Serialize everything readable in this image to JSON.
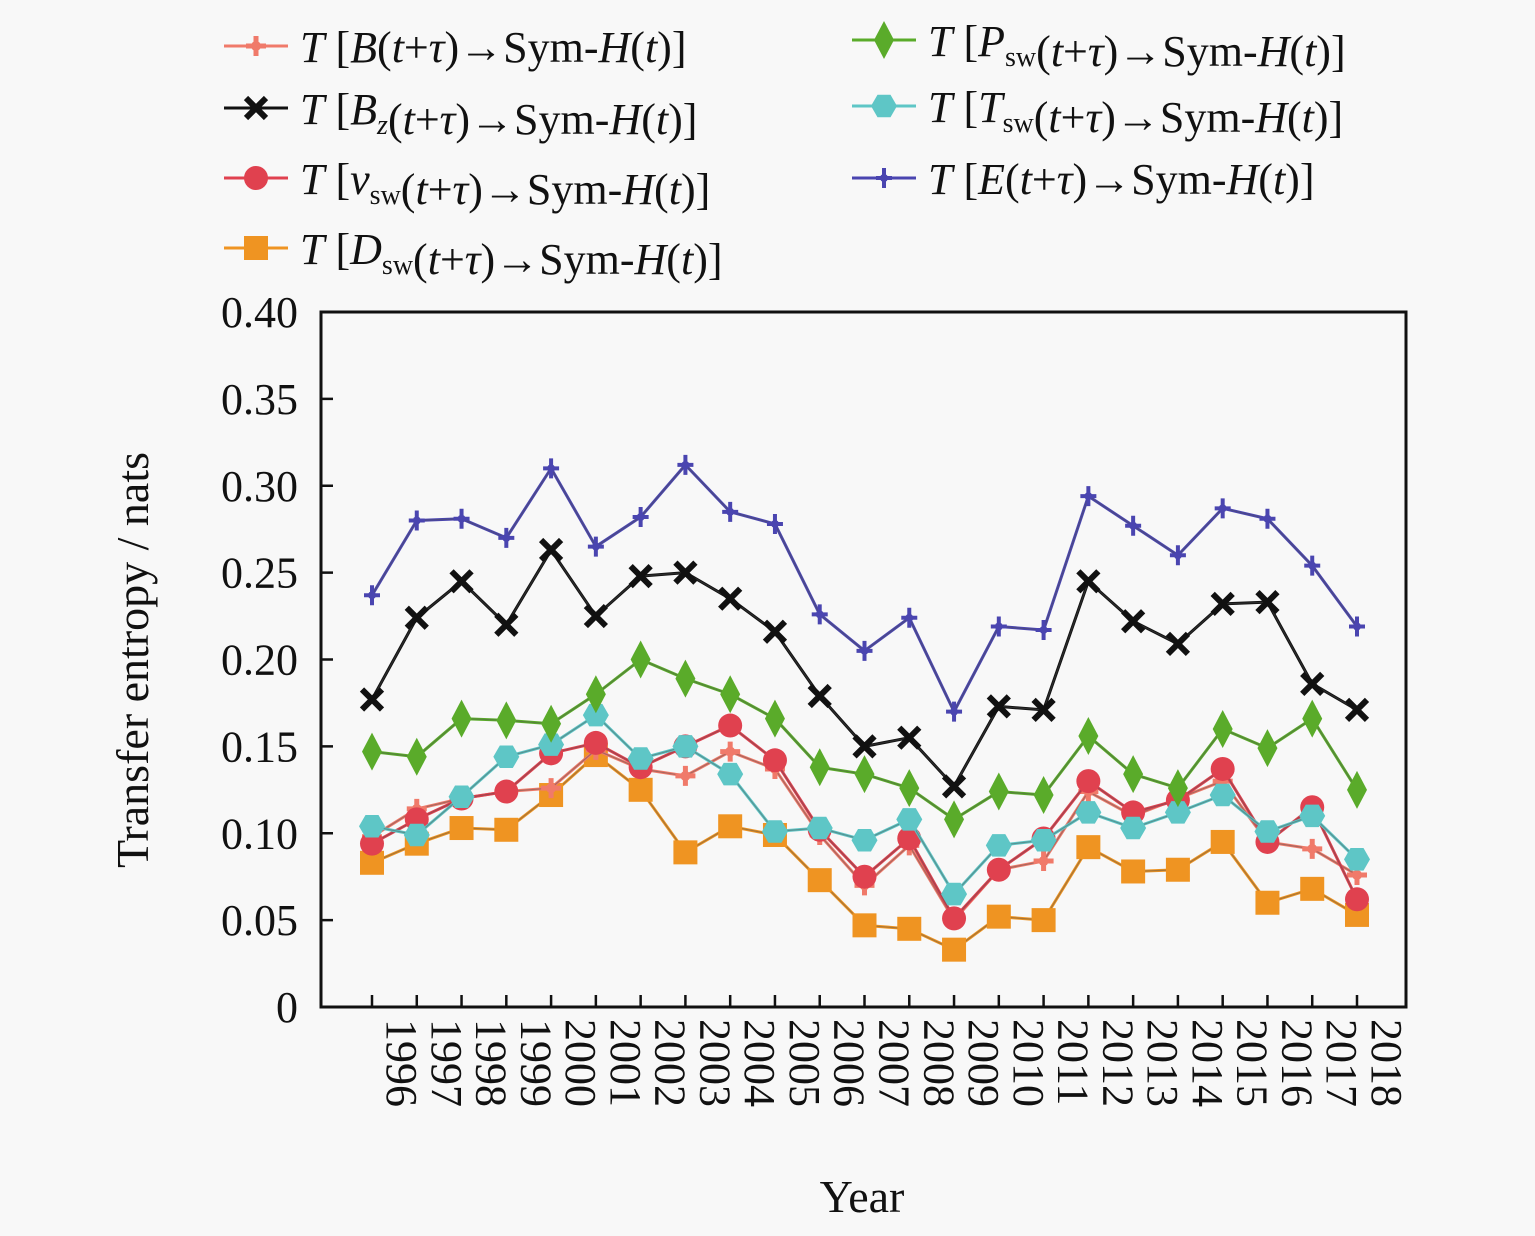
{
  "chart_data": {
    "type": "line",
    "title": "",
    "xlabel": "Year",
    "ylabel": "Transfer entropy / nats",
    "ylim": [
      0,
      0.4
    ],
    "yticks": [
      "0",
      "0.05",
      "0.10",
      "0.15",
      "0.20",
      "0.25",
      "0.30",
      "0.35",
      "0.40"
    ],
    "ytick_values": [
      0,
      0.05,
      0.1,
      0.15,
      0.2,
      0.25,
      0.3,
      0.35,
      0.4
    ],
    "grid": false,
    "legend_position": "top",
    "x": [
      "1996",
      "1997",
      "1998",
      "1999",
      "2000",
      "2001",
      "2002",
      "2003",
      "2004",
      "2005",
      "2006",
      "2007",
      "2008",
      "2009",
      "2010",
      "2011",
      "2012",
      "2013",
      "2014",
      "2015",
      "2016",
      "2017",
      "2018"
    ],
    "series": [
      {
        "name": "T [B(t+τ)→Sym-H(t)]",
        "legend": {
          "pre": "T [",
          "var": "B",
          "sub": "",
          "post": "(t+τ)→Sym-H(t)]"
        },
        "color": "#f07a6a",
        "marker": "plus",
        "values": [
          0.098,
          0.114,
          0.12,
          0.124,
          0.126,
          0.148,
          0.137,
          0.133,
          0.147,
          0.137,
          0.099,
          0.07,
          0.093,
          0.05,
          0.079,
          0.084,
          0.124,
          0.11,
          0.12,
          0.13,
          0.095,
          0.091,
          0.076
        ]
      },
      {
        "name": "T [Bz(t+τ)→Sym-H(t)]",
        "legend": {
          "pre": "T [",
          "var": "B",
          "sub": "z",
          "post": "(t+τ)→Sym-H(t)]"
        },
        "color": "#111111",
        "marker": "x",
        "values": [
          0.177,
          0.224,
          0.245,
          0.22,
          0.263,
          0.225,
          0.248,
          0.25,
          0.235,
          0.216,
          0.179,
          0.15,
          0.155,
          0.127,
          0.173,
          0.171,
          0.245,
          0.222,
          0.209,
          0.232,
          0.233,
          0.186,
          0.171
        ]
      },
      {
        "name": "T [vsw(t+τ)→Sym-H(t)]",
        "legend": {
          "pre": "T [",
          "var": "v",
          "sub": "sw",
          "post": "(t+τ)→Sym-H(t)]"
        },
        "color": "#e0414f",
        "marker": "circle",
        "values": [
          0.094,
          0.108,
          0.12,
          0.124,
          0.146,
          0.152,
          0.138,
          0.15,
          0.162,
          0.142,
          0.102,
          0.075,
          0.097,
          0.051,
          0.079,
          0.097,
          0.13,
          0.112,
          0.119,
          0.137,
          0.095,
          0.115,
          0.062
        ]
      },
      {
        "name": "T [Dsw(t+τ)→Sym-H(t)]",
        "legend": {
          "pre": "T [",
          "var": "D",
          "sub": "sw",
          "post": "(t+τ)→Sym-H(t)]"
        },
        "color": "#ef9422",
        "marker": "square",
        "values": [
          0.083,
          0.094,
          0.103,
          0.102,
          0.122,
          0.145,
          0.125,
          0.089,
          0.104,
          0.099,
          0.073,
          0.047,
          0.045,
          0.033,
          0.052,
          0.05,
          0.092,
          0.078,
          0.079,
          0.095,
          0.06,
          0.068,
          0.053
        ]
      },
      {
        "name": "T [Psw(t+τ)→Sym-H(t)]",
        "legend": {
          "pre": "T [",
          "var": "P",
          "sub": "sw",
          "post": "(t+τ)→Sym-H(t)]"
        },
        "color": "#5aab2a",
        "marker": "diamond",
        "values": [
          0.147,
          0.144,
          0.166,
          0.165,
          0.163,
          0.18,
          0.2,
          0.189,
          0.18,
          0.166,
          0.138,
          0.134,
          0.126,
          0.108,
          0.124,
          0.122,
          0.156,
          0.134,
          0.126,
          0.16,
          0.149,
          0.166,
          0.125
        ]
      },
      {
        "name": "T [Tsw(t+τ)→Sym-H(t)]",
        "legend": {
          "pre": "T [",
          "var": "T",
          "sub": "sw",
          "post": "(t+τ)→Sym-H(t)]"
        },
        "color": "#5ec6c6",
        "marker": "hexagon",
        "values": [
          0.104,
          0.099,
          0.121,
          0.144,
          0.151,
          0.168,
          0.143,
          0.15,
          0.134,
          0.101,
          0.103,
          0.096,
          0.108,
          0.065,
          0.093,
          0.096,
          0.112,
          0.103,
          0.112,
          0.122,
          0.101,
          0.11,
          0.085
        ]
      },
      {
        "name": "T [E(t+τ)→Sym-H(t)]",
        "legend": {
          "pre": "T [",
          "var": "E",
          "sub": "",
          "post": "(t+τ)→Sym-H(t)]"
        },
        "color": "#4a45b0",
        "marker": "star",
        "values": [
          0.237,
          0.28,
          0.281,
          0.27,
          0.31,
          0.265,
          0.282,
          0.312,
          0.285,
          0.278,
          0.226,
          0.205,
          0.224,
          0.17,
          0.219,
          0.217,
          0.294,
          0.277,
          0.26,
          0.287,
          0.281,
          0.254,
          0.219
        ]
      }
    ]
  }
}
